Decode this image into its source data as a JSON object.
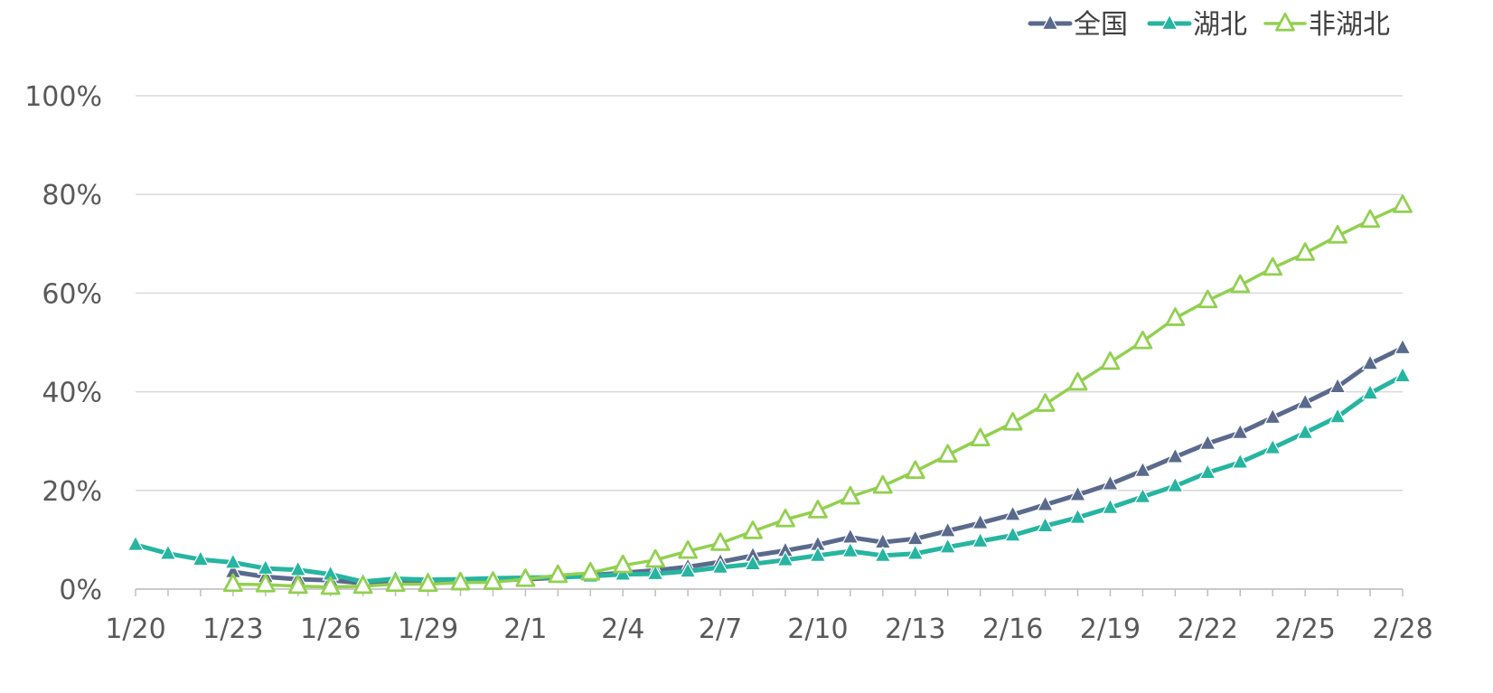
{
  "chart_data": {
    "type": "line",
    "title": "",
    "xlabel": "",
    "ylabel": "",
    "ylim": [
      0,
      100
    ],
    "y_ticks": [
      "0%",
      "20%",
      "40%",
      "60%",
      "80%",
      "100%"
    ],
    "x_tick_labels": [
      "1/20",
      "1/23",
      "1/26",
      "1/29",
      "2/1",
      "2/4",
      "2/7",
      "2/10",
      "2/13",
      "2/16",
      "2/19",
      "2/22",
      "2/25",
      "2/28"
    ],
    "grid": true,
    "legend_position": "top-right",
    "categories": [
      "1/20",
      "1/21",
      "1/22",
      "1/23",
      "1/24",
      "1/25",
      "1/26",
      "1/27",
      "1/28",
      "1/29",
      "1/30",
      "1/31",
      "2/1",
      "2/2",
      "2/3",
      "2/4",
      "2/5",
      "2/6",
      "2/7",
      "2/8",
      "2/9",
      "2/10",
      "2/11",
      "2/12",
      "2/13",
      "2/14",
      "2/15",
      "2/16",
      "2/17",
      "2/18",
      "2/19",
      "2/20",
      "2/21",
      "2/22",
      "2/23",
      "2/24",
      "2/25",
      "2/26",
      "2/27",
      "2/28"
    ],
    "series": [
      {
        "name": "全国",
        "color": "#5a6a8c",
        "marker": "filled-triangle",
        "values": [
          null,
          null,
          null,
          3.5,
          2.5,
          2.0,
          1.8,
          1.2,
          1.5,
          1.6,
          1.6,
          1.8,
          2.0,
          2.3,
          2.8,
          3.3,
          3.8,
          4.5,
          5.5,
          6.8,
          7.8,
          9.0,
          10.5,
          9.5,
          10.2,
          11.8,
          13.4,
          15.1,
          17.1,
          19.1,
          21.3,
          24.0,
          26.8,
          29.5,
          31.7,
          34.8,
          37.8,
          41.0,
          45.7,
          48.9
        ]
      },
      {
        "name": "湖北",
        "color": "#26b5a0",
        "marker": "filled-triangle",
        "values": [
          9.0,
          7.2,
          6.0,
          5.4,
          4.2,
          3.9,
          3.0,
          1.5,
          2.1,
          1.9,
          2.0,
          2.2,
          2.3,
          2.4,
          2.6,
          3.0,
          3.1,
          3.6,
          4.4,
          5.1,
          5.9,
          6.8,
          7.7,
          6.8,
          7.2,
          8.5,
          9.7,
          10.9,
          12.8,
          14.5,
          16.5,
          18.7,
          20.9,
          23.6,
          25.7,
          28.6,
          31.7,
          34.9,
          39.7,
          43.2
        ]
      },
      {
        "name": "非湖北",
        "color": "#92d050",
        "marker": "open-triangle",
        "values": [
          null,
          null,
          null,
          1.0,
          0.9,
          0.6,
          0.4,
          0.6,
          1.0,
          1.0,
          1.3,
          1.4,
          2.0,
          2.8,
          3.3,
          4.8,
          5.9,
          7.7,
          9.3,
          11.7,
          14.1,
          15.9,
          18.7,
          20.9,
          23.9,
          27.2,
          30.5,
          33.7,
          37.5,
          41.8,
          46.0,
          50.2,
          54.9,
          58.5,
          61.6,
          65.1,
          68.1,
          71.6,
          74.8,
          77.8
        ]
      }
    ]
  }
}
